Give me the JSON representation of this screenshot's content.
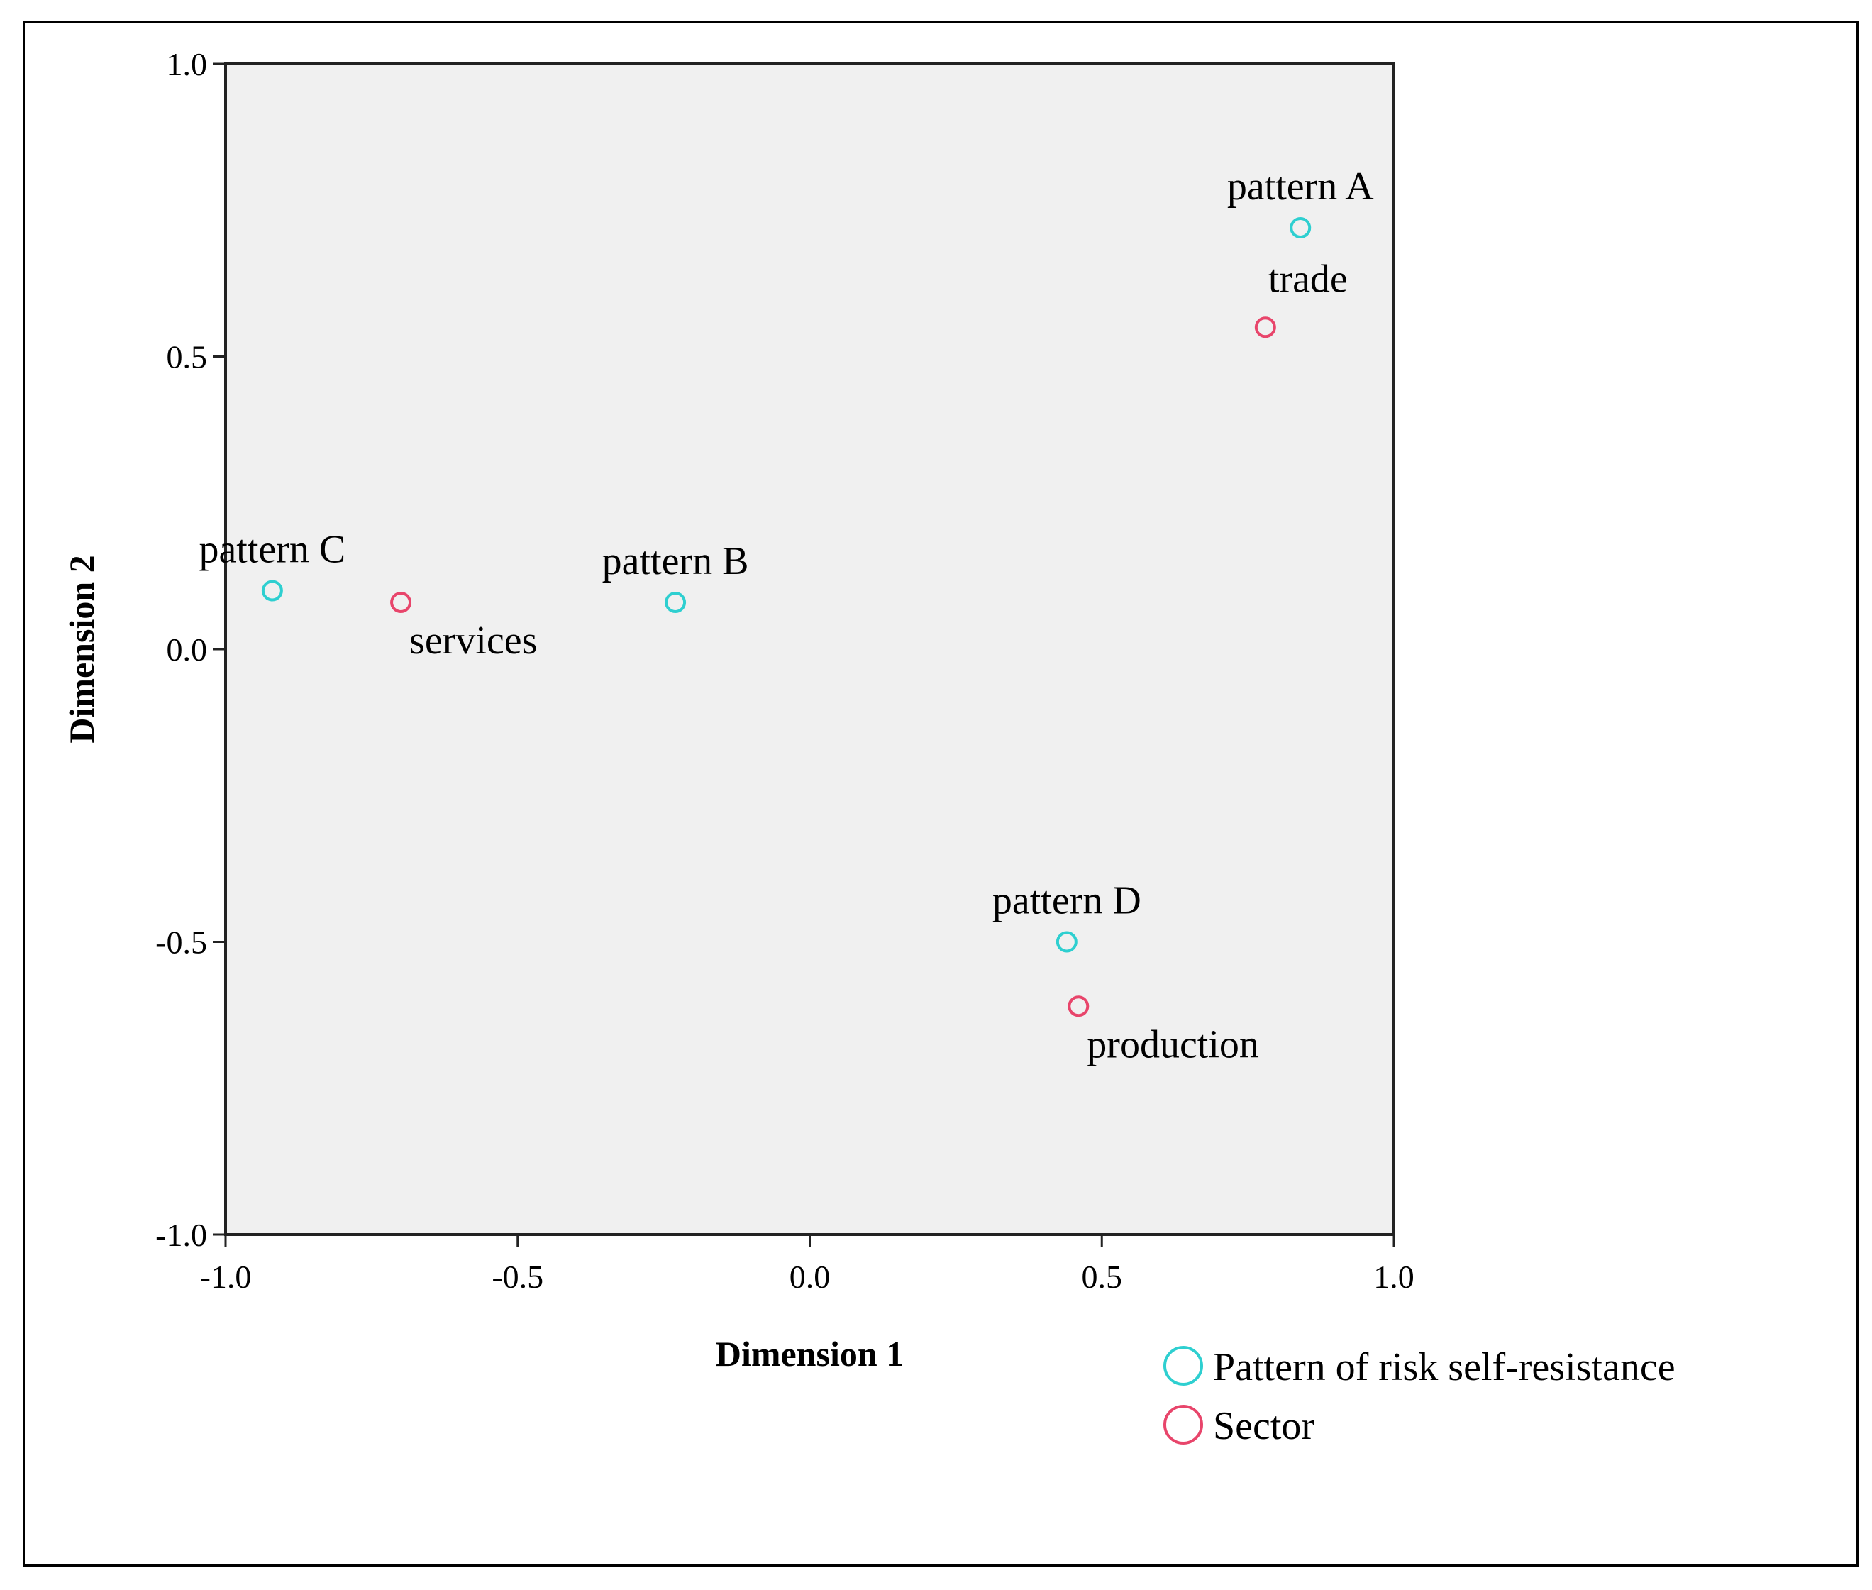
{
  "chart_data": {
    "type": "scatter",
    "xlabel": "Dimension 1",
    "ylabel": "Dimension 2",
    "xlim": [
      -1.0,
      1.0
    ],
    "ylim": [
      -1.0,
      1.0
    ],
    "xticks": [
      -1.0,
      -0.5,
      0.0,
      0.5,
      1.0
    ],
    "yticks": [
      -1.0,
      -0.5,
      0.0,
      0.5,
      1.0
    ],
    "xtick_labels": [
      "-1.0",
      "-0.5",
      "0.0",
      "0.5",
      "1.0"
    ],
    "ytick_labels": [
      "-1.0",
      "-0.5",
      "0.0",
      "0.5",
      "1.0"
    ],
    "grid": false,
    "plot_background": "#f0f0f0",
    "legend_position": "bottom-right",
    "series": [
      {
        "name": "Pattern of risk self-resistance",
        "color": "#2ecfd0",
        "marker": "open-circle",
        "points": [
          {
            "label": "pattern A",
            "x": 0.84,
            "y": 0.72,
            "label_pos": "above"
          },
          {
            "label": "pattern B",
            "x": -0.23,
            "y": 0.08,
            "label_pos": "above"
          },
          {
            "label": "pattern C",
            "x": -0.92,
            "y": 0.1,
            "label_pos": "above"
          },
          {
            "label": "pattern D",
            "x": 0.44,
            "y": -0.5,
            "label_pos": "above"
          }
        ]
      },
      {
        "name": "Sector",
        "color": "#e8456b",
        "marker": "open-circle",
        "points": [
          {
            "label": "trade",
            "x": 0.78,
            "y": 0.55,
            "label_pos": "above-right"
          },
          {
            "label": "services",
            "x": -0.7,
            "y": 0.08,
            "label_pos": "below-right"
          },
          {
            "label": "production",
            "x": 0.46,
            "y": -0.61,
            "label_pos": "below-right"
          }
        ]
      }
    ]
  }
}
